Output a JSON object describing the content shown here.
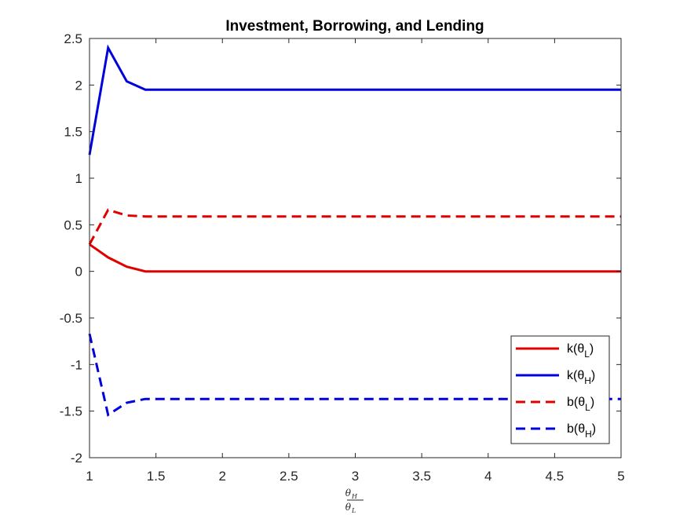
{
  "chart_data": {
    "type": "line",
    "title": "Investment, Borrowing, and Lending",
    "xlabel": {
      "numerator": "θ",
      "numerator_sub": "H",
      "denominator": "θ",
      "denominator_sub": "L"
    },
    "ylabel": "",
    "xlim": [
      1,
      5
    ],
    "ylim": [
      -2,
      2.5
    ],
    "xticks": [
      1,
      1.5,
      2,
      2.5,
      3,
      3.5,
      4,
      4.5,
      5
    ],
    "xtick_labels": [
      "1",
      "1.5",
      "2",
      "2.5",
      "3",
      "3.5",
      "4",
      "4.5",
      "5"
    ],
    "yticks": [
      -2,
      -1.5,
      -1,
      -0.5,
      0,
      0.5,
      1,
      1.5,
      2,
      2.5
    ],
    "ytick_labels": [
      "-2",
      "-1.5",
      "-1",
      "-0.5",
      "0",
      "0.5",
      "1",
      "1.5",
      "2",
      "2.5"
    ],
    "grid": false,
    "legend_position": "bottom-right",
    "series": [
      {
        "name": "k(θL)",
        "label_main": "k(θ",
        "label_sub": "L",
        "label_close": ")",
        "color": "#e00000",
        "style": "solid",
        "x": [
          1,
          1.14,
          1.28,
          1.42,
          2,
          3,
          4,
          5
        ],
        "y": [
          0.29,
          0.15,
          0.05,
          0.0,
          0.0,
          0.0,
          0.0,
          0.0
        ]
      },
      {
        "name": "k(θH)",
        "label_main": "k(θ",
        "label_sub": "H",
        "label_close": ")",
        "color": "#0000dd",
        "style": "solid",
        "x": [
          1,
          1.14,
          1.28,
          1.42,
          2,
          3,
          4,
          5
        ],
        "y": [
          1.25,
          2.4,
          2.04,
          1.95,
          1.95,
          1.95,
          1.95,
          1.95
        ]
      },
      {
        "name": "b(θL)",
        "label_main": "b(θ",
        "label_sub": "L",
        "label_close": ")",
        "color": "#e00000",
        "style": "dashed",
        "x": [
          1,
          1.14,
          1.28,
          1.42,
          2,
          3,
          4,
          5
        ],
        "y": [
          0.29,
          0.66,
          0.6,
          0.59,
          0.59,
          0.59,
          0.59,
          0.59
        ]
      },
      {
        "name": "b(θH)",
        "label_main": "b(θ",
        "label_sub": "H",
        "label_close": ")",
        "color": "#0000dd",
        "style": "dashed",
        "x": [
          1,
          1.14,
          1.28,
          1.42,
          2,
          3,
          4,
          5
        ],
        "y": [
          -0.67,
          -1.54,
          -1.41,
          -1.37,
          -1.37,
          -1.37,
          -1.37,
          -1.37
        ]
      }
    ]
  }
}
